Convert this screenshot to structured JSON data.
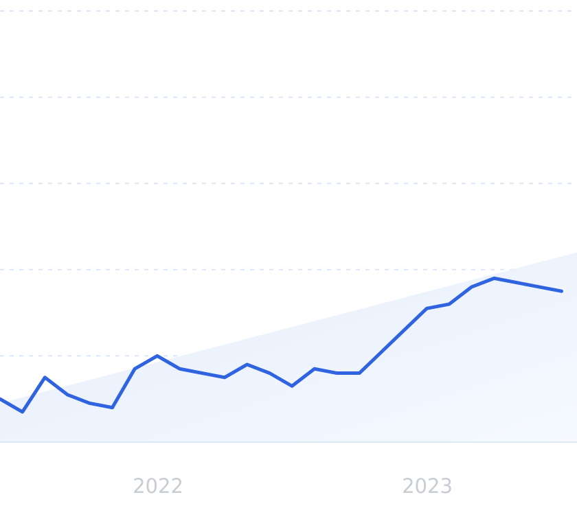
{
  "chart_data": {
    "type": "line",
    "title": "",
    "xlabel": "",
    "ylabel": "",
    "x_tick_labels": [
      "2022",
      "2023"
    ],
    "x": [
      "2021-07",
      "2021-08",
      "2021-09",
      "2021-10",
      "2021-11",
      "2021-12",
      "2022-01",
      "2022-02",
      "2022-03",
      "2022-04",
      "2022-05",
      "2022-06",
      "2022-07",
      "2022-08",
      "2022-09",
      "2022-10",
      "2022-11",
      "2022-12",
      "2023-01",
      "2023-02",
      "2023-03",
      "2023-04",
      "2023-05",
      "2023-06",
      "2023-07",
      "2023-08"
    ],
    "series": [
      {
        "values": [
          0.5,
          0.35,
          0.75,
          0.55,
          0.45,
          0.4,
          0.85,
          1.0,
          0.85,
          0.8,
          0.75,
          0.9,
          0.8,
          0.65,
          0.85,
          0.8,
          0.8,
          1.05,
          1.3,
          1.55,
          1.6,
          1.8,
          1.9,
          1.85,
          1.8,
          1.75
        ]
      }
    ],
    "trend_band": {
      "start": 0.45,
      "end": 2.2
    },
    "ylim": [
      0,
      5
    ],
    "y_gridlines": [
      1,
      2,
      3,
      4,
      5
    ],
    "grid": true,
    "legend": "none",
    "colors": {
      "line": "#2f63e0",
      "band_start": "#e6eefb",
      "band_end": "#f5f9ff",
      "grid": "#dbe6fb",
      "axis": "#dce8f8",
      "tick_text": "#c8ccd3"
    }
  }
}
